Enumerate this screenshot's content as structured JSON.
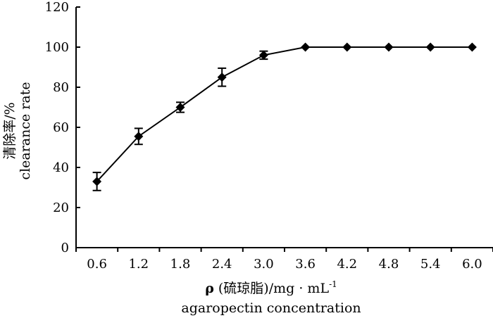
{
  "chart_data": {
    "type": "line",
    "title": "",
    "x": [
      "0.6",
      "1.2",
      "1.8",
      "2.4",
      "3.0",
      "3.6",
      "4.2",
      "4.8",
      "5.4",
      "6.0"
    ],
    "series": [
      {
        "values": [
          33,
          55.5,
          70,
          85,
          96,
          100,
          100,
          100,
          100,
          100
        ],
        "error": [
          4.5,
          4,
          2.5,
          4.5,
          2,
          0,
          0,
          0,
          0,
          0
        ],
        "marker": "diamond",
        "color": "#000000"
      }
    ],
    "ylim": [
      0,
      120
    ],
    "yticks": [
      "0",
      "20",
      "40",
      "60",
      "80",
      "100",
      "120"
    ],
    "ylabel_line1": "清除率/%",
    "ylabel_line2": "clearance rate",
    "xlabel_line1_rho": "ρ",
    "xlabel_line1_rest": " (硫琼脂)/mg · mL",
    "xlabel_line1_sup": "-1",
    "xlabel_line2": "agaropectin concentration",
    "grid": false,
    "legend": "none"
  }
}
